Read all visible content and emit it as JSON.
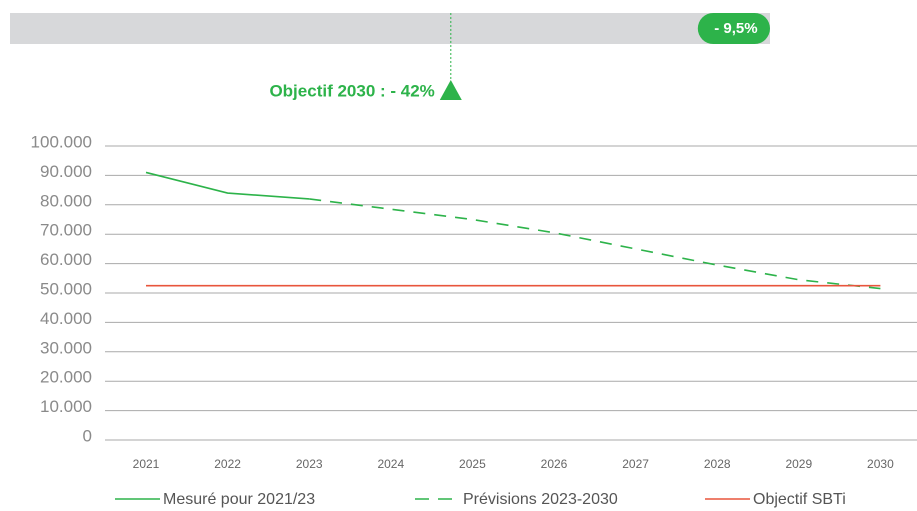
{
  "progress": {
    "label": "- 9,5%",
    "value": -9.5,
    "color": "#2db34a",
    "target": {
      "label": "Objectif 2030 : - 42%",
      "value": -42
    }
  },
  "chart_data": {
    "type": "line",
    "categories": [
      "2021",
      "2022",
      "2023",
      "2024",
      "2025",
      "2026",
      "2027",
      "2028",
      "2029",
      "2030"
    ],
    "series": [
      {
        "name": "Mesuré pour 2021/23",
        "color": "#2db34a",
        "dash": false,
        "values": [
          91000,
          84000,
          82000,
          null,
          null,
          null,
          null,
          null,
          null,
          null
        ]
      },
      {
        "name": "Prévisions 2023-2030",
        "color": "#2db34a",
        "dash": true,
        "values": [
          null,
          null,
          82000,
          78500,
          75000,
          70500,
          65000,
          59500,
          54500,
          51500
        ]
      },
      {
        "name": "Objectif SBTi",
        "color": "#e8553c",
        "dash": false,
        "values": [
          52500,
          52500,
          52500,
          52500,
          52500,
          52500,
          52500,
          52500,
          52500,
          52500
        ]
      }
    ],
    "ylim": [
      0,
      100000
    ],
    "yticks": [
      0,
      {
        "value": 10000,
        "label": "10.000"
      },
      {
        "value": 20000,
        "label": "20.000"
      },
      {
        "value": 30000,
        "label": "30.000"
      },
      {
        "value": 40000,
        "label": "40.000"
      },
      {
        "value": 50000,
        "label": "50.000"
      },
      {
        "value": 60000,
        "label": "60.000"
      },
      {
        "value": 70000,
        "label": "70.000"
      },
      {
        "value": 80000,
        "label": "80.000"
      },
      {
        "value": 90000,
        "label": "90.000"
      },
      {
        "value": 100000,
        "label": "100.000"
      }
    ],
    "grid": true
  }
}
